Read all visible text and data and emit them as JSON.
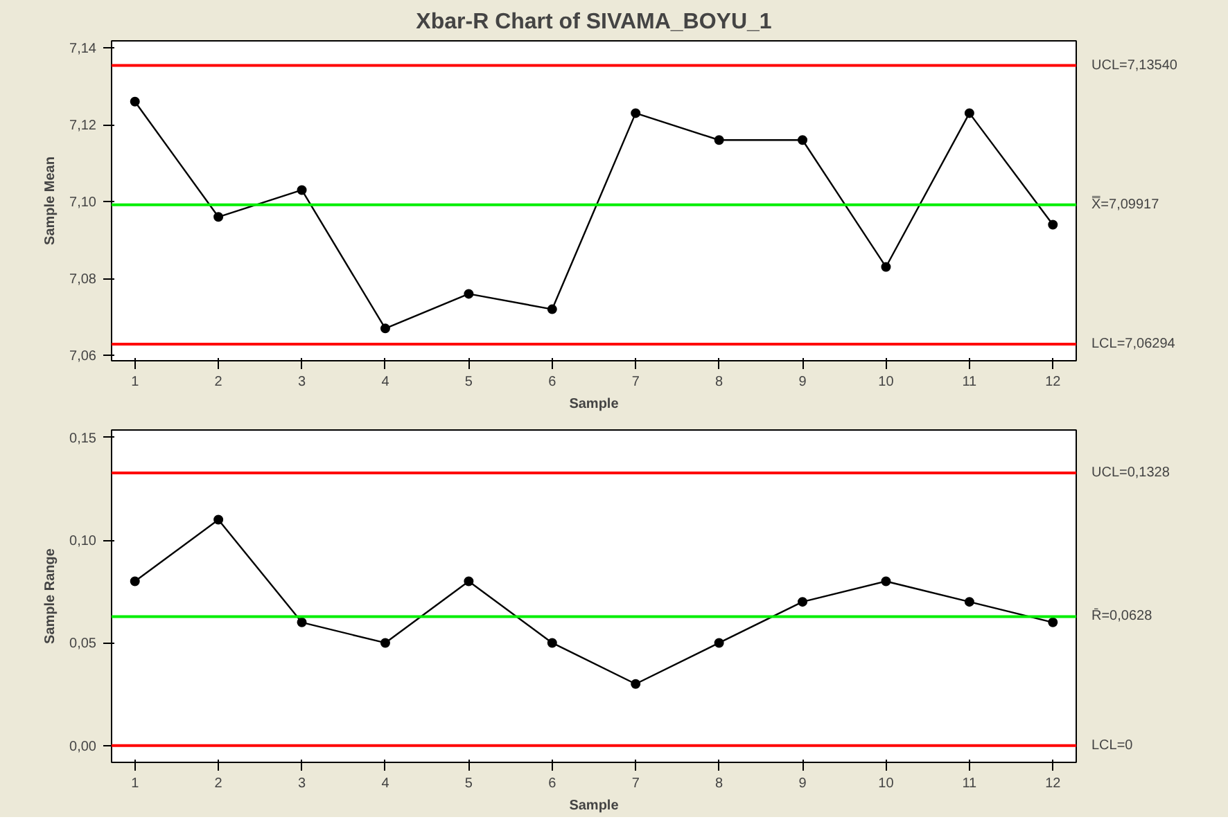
{
  "chart_data": [
    {
      "type": "line",
      "title": "Xbar-R Chart of SIVAMA_BOYU_1",
      "xlabel": "Sample",
      "ylabel": "Sample Mean",
      "x": [
        1,
        2,
        3,
        4,
        5,
        6,
        7,
        8,
        9,
        10,
        11,
        12
      ],
      "series": [
        {
          "color": "#000000",
          "values": [
            7.126,
            7.096,
            7.103,
            7.067,
            7.076,
            7.072,
            7.123,
            7.116,
            7.116,
            7.083,
            7.123,
            7.094
          ]
        }
      ],
      "xlim": [
        0.72,
        12.28
      ],
      "xticks": [
        1,
        2,
        3,
        4,
        5,
        6,
        7,
        8,
        9,
        10,
        11,
        12
      ],
      "ylim": [
        7.0586,
        7.1418
      ],
      "yticks": [
        {
          "value": 7.06,
          "label": "7,06"
        },
        {
          "value": 7.08,
          "label": "7,08"
        },
        {
          "value": 7.1,
          "label": "7,10"
        },
        {
          "value": 7.12,
          "label": "7,12"
        },
        {
          "value": 7.14,
          "label": "7,14"
        }
      ],
      "ref_lines": [
        {
          "axis": "y",
          "value": 7.1354,
          "label": "UCL=7,13540",
          "color": "#ff0000"
        },
        {
          "axis": "y",
          "value": 7.09917,
          "label": "X̿=7,09917",
          "color": "#00ee00"
        },
        {
          "axis": "y",
          "value": 7.06294,
          "label": "LCL=7,06294",
          "color": "#ff0000"
        }
      ],
      "marker": "circle",
      "line_style": "solid",
      "grid": false
    },
    {
      "type": "line",
      "xlabel": "Sample",
      "ylabel": "Sample Range",
      "x": [
        1,
        2,
        3,
        4,
        5,
        6,
        7,
        8,
        9,
        10,
        11,
        12
      ],
      "series": [
        {
          "color": "#000000",
          "values": [
            0.08,
            0.11,
            0.06,
            0.05,
            0.08,
            0.05,
            0.03,
            0.05,
            0.07,
            0.08,
            0.07,
            0.06
          ]
        }
      ],
      "xlim": [
        0.72,
        12.28
      ],
      "xticks": [
        1,
        2,
        3,
        4,
        5,
        6,
        7,
        8,
        9,
        10,
        11,
        12
      ],
      "ylim": [
        -0.0082,
        0.1537
      ],
      "yticks": [
        {
          "value": 0,
          "label": "0,00"
        },
        {
          "value": 0.05,
          "label": "0,05"
        },
        {
          "value": 0.1,
          "label": "0,10"
        },
        {
          "value": 0.15,
          "label": "0,15"
        }
      ],
      "ref_lines": [
        {
          "axis": "y",
          "value": 0.1328,
          "label": "UCL=0,1328",
          "color": "#ff0000"
        },
        {
          "axis": "y",
          "value": 0.0628,
          "label": "R̄=0,0628",
          "color": "#00ee00"
        },
        {
          "axis": "y",
          "value": 0,
          "label": "LCL=0",
          "color": "#ff0000"
        }
      ],
      "marker": "circle",
      "line_style": "solid",
      "grid": false
    }
  ]
}
